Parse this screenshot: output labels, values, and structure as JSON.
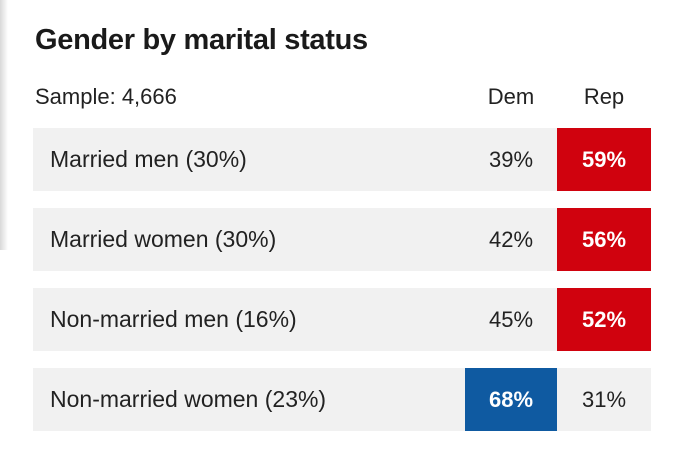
{
  "chart_data": {
    "type": "table",
    "title": "Gender by marital status",
    "sample": "Sample: 4,666",
    "columns": [
      "Dem",
      "Rep"
    ],
    "rows": [
      {
        "label": "Married men (30%)",
        "dem": "39%",
        "rep": "59%",
        "winner": "rep"
      },
      {
        "label": "Married women (30%)",
        "dem": "42%",
        "rep": "56%",
        "winner": "rep"
      },
      {
        "label": "Non-married men (16%)",
        "dem": "45%",
        "rep": "52%",
        "winner": "rep"
      },
      {
        "label": "Non-married women (23%)",
        "dem": "68%",
        "rep": "31%",
        "winner": "dem"
      }
    ]
  },
  "colors": {
    "dem": "#0f5aa1",
    "rep": "#d0020e",
    "row_bg": "#f1f1f1"
  }
}
